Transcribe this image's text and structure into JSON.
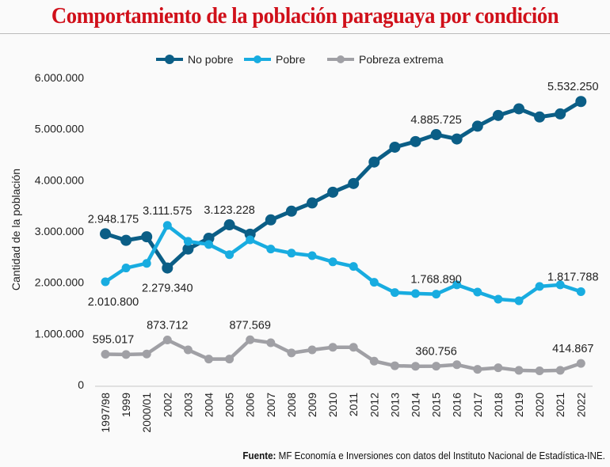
{
  "title": "Comportamiento de la población paraguaya por condición",
  "footer": {
    "label": "Fuente:",
    "text": " MF Economía e Inversiones con datos del Instituto Nacional de Estadística-INE."
  },
  "chart_data": {
    "type": "line",
    "title": "Comportamiento de la población paraguaya por condición",
    "ylabel": "Cantidad de la población",
    "xlabel": "",
    "ylim": [
      0,
      6000000
    ],
    "yticks": [
      "0",
      "1.000.000",
      "2.000.000",
      "3.000.000",
      "4.000.000",
      "5.000.000",
      "6.000.000"
    ],
    "ytick_values": [
      0,
      1000000,
      2000000,
      3000000,
      4000000,
      5000000,
      6000000
    ],
    "grid": false,
    "legend": "top",
    "categories": [
      "1997/98",
      "1999",
      "2000/01",
      "2002",
      "2003",
      "2004",
      "2005",
      "2006",
      "2007",
      "2008",
      "2009",
      "2010",
      "2011",
      "2012",
      "2013",
      "2014",
      "2015",
      "2016",
      "2017",
      "2018",
      "2019",
      "2020",
      "2021",
      "2022"
    ],
    "series": [
      {
        "name": "No pobre",
        "color": "#0b5e86",
        "values": [
          2948175,
          2820000,
          2890000,
          2279340,
          2650000,
          2860000,
          3123228,
          2940000,
          3220000,
          3390000,
          3550000,
          3760000,
          3930000,
          4350000,
          4640000,
          4750000,
          4885725,
          4800000,
          5050000,
          5260000,
          5390000,
          5230000,
          5290000,
          5532250
        ],
        "labels": [
          {
            "index": 0,
            "text": "2.948.175",
            "pos": "above"
          },
          {
            "index": 3,
            "text": "2.279.340",
            "pos": "below"
          },
          {
            "index": 6,
            "text": "3.123.228",
            "pos": "above"
          },
          {
            "index": 16,
            "text": "4.885.725",
            "pos": "above"
          },
          {
            "index": 23,
            "text": "5.532.250",
            "pos": "above"
          }
        ]
      },
      {
        "name": "Pobre",
        "color": "#18ace0",
        "values": [
          2010800,
          2280000,
          2370000,
          3111575,
          2800000,
          2740000,
          2540000,
          2830000,
          2650000,
          2570000,
          2520000,
          2400000,
          2310000,
          2000000,
          1800000,
          1780000,
          1768890,
          1950000,
          1810000,
          1670000,
          1640000,
          1920000,
          1950000,
          1817788
        ],
        "labels": [
          {
            "index": 0,
            "text": "2.010.800",
            "pos": "below"
          },
          {
            "index": 3,
            "text": "3.111.575",
            "pos": "above"
          },
          {
            "index": 16,
            "text": "1.768.890",
            "pos": "above"
          },
          {
            "index": 23,
            "text": "1.817.788",
            "pos": "above"
          }
        ]
      },
      {
        "name": "Pobreza extrema",
        "color": "#a0a0a5",
        "values": [
          595017,
          590000,
          600000,
          873712,
          680000,
          500000,
          500000,
          877569,
          820000,
          620000,
          680000,
          730000,
          730000,
          460000,
          370000,
          360000,
          360756,
          390000,
          300000,
          330000,
          280000,
          270000,
          280000,
          414867
        ],
        "labels": [
          {
            "index": 0,
            "text": "595.017",
            "pos": "above"
          },
          {
            "index": 3,
            "text": "873.712",
            "pos": "above"
          },
          {
            "index": 7,
            "text": "877.569",
            "pos": "above"
          },
          {
            "index": 16,
            "text": "360.756",
            "pos": "above"
          },
          {
            "index": 23,
            "text": "414.867",
            "pos": "above"
          }
        ]
      }
    ]
  }
}
